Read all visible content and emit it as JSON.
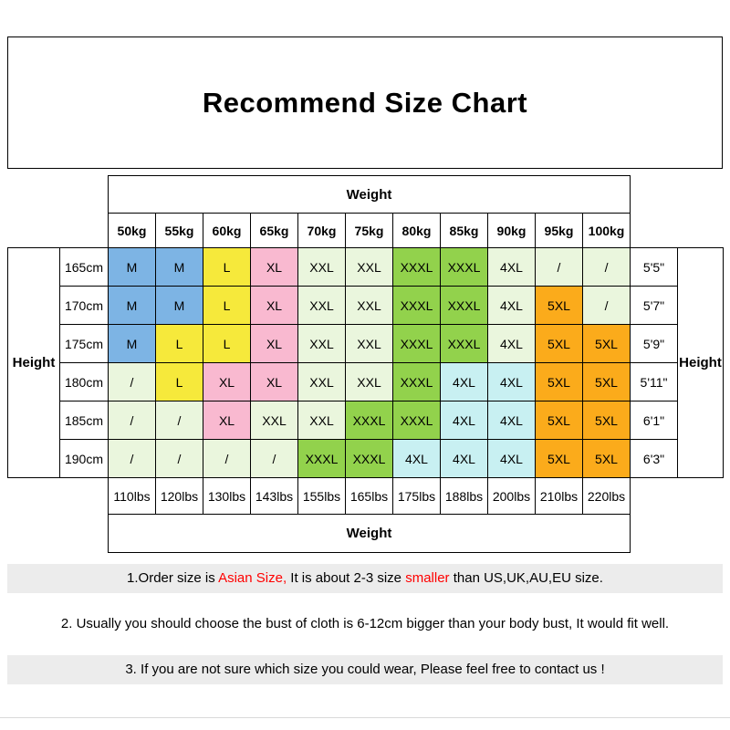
{
  "title": "Recommend Size Chart",
  "chart_data": {
    "type": "table",
    "title": "Recommend Size Chart",
    "weight_axis_label_top": "Weight",
    "weight_axis_label_bottom": "Weight",
    "height_axis_label_left": "Height",
    "height_axis_label_right": "Height",
    "weights_kg": [
      "50kg",
      "55kg",
      "60kg",
      "65kg",
      "70kg",
      "75kg",
      "80kg",
      "85kg",
      "90kg",
      "95kg",
      "100kg"
    ],
    "weights_lbs": [
      "110lbs",
      "120lbs",
      "130lbs",
      "143lbs",
      "155lbs",
      "165lbs",
      "175lbs",
      "188lbs",
      "200lbs",
      "210lbs",
      "220lbs"
    ],
    "rows": [
      {
        "height_cm": "165cm",
        "height_ft": "5'5\"",
        "cells": [
          {
            "v": "M",
            "c": "blue"
          },
          {
            "v": "M",
            "c": "blue"
          },
          {
            "v": "L",
            "c": "yellow"
          },
          {
            "v": "XL",
            "c": "pink"
          },
          {
            "v": "XXL",
            "c": "pale"
          },
          {
            "v": "XXL",
            "c": "pale"
          },
          {
            "v": "XXXL",
            "c": "green"
          },
          {
            "v": "XXXL",
            "c": "green"
          },
          {
            "v": "4XL",
            "c": "pale"
          },
          {
            "v": "/",
            "c": "pale"
          },
          {
            "v": "/",
            "c": "pale"
          }
        ]
      },
      {
        "height_cm": "170cm",
        "height_ft": "5'7\"",
        "cells": [
          {
            "v": "M",
            "c": "blue"
          },
          {
            "v": "M",
            "c": "blue"
          },
          {
            "v": "L",
            "c": "yellow"
          },
          {
            "v": "XL",
            "c": "pink"
          },
          {
            "v": "XXL",
            "c": "pale"
          },
          {
            "v": "XXL",
            "c": "pale"
          },
          {
            "v": "XXXL",
            "c": "green"
          },
          {
            "v": "XXXL",
            "c": "green"
          },
          {
            "v": "4XL",
            "c": "pale"
          },
          {
            "v": "5XL",
            "c": "orange"
          },
          {
            "v": "/",
            "c": "pale"
          }
        ]
      },
      {
        "height_cm": "175cm",
        "height_ft": "5'9\"",
        "cells": [
          {
            "v": "M",
            "c": "blue"
          },
          {
            "v": "L",
            "c": "yellow"
          },
          {
            "v": "L",
            "c": "yellow"
          },
          {
            "v": "XL",
            "c": "pink"
          },
          {
            "v": "XXL",
            "c": "pale"
          },
          {
            "v": "XXL",
            "c": "pale"
          },
          {
            "v": "XXXL",
            "c": "green"
          },
          {
            "v": "XXXL",
            "c": "green"
          },
          {
            "v": "4XL",
            "c": "pale"
          },
          {
            "v": "5XL",
            "c": "orange"
          },
          {
            "v": "5XL",
            "c": "orange"
          }
        ]
      },
      {
        "height_cm": "180cm",
        "height_ft": "5'11\"",
        "cells": [
          {
            "v": "/",
            "c": "pale"
          },
          {
            "v": "L",
            "c": "yellow"
          },
          {
            "v": "XL",
            "c": "pink"
          },
          {
            "v": "XL",
            "c": "pink"
          },
          {
            "v": "XXL",
            "c": "pale"
          },
          {
            "v": "XXL",
            "c": "pale"
          },
          {
            "v": "XXXL",
            "c": "green"
          },
          {
            "v": "4XL",
            "c": "cyan"
          },
          {
            "v": "4XL",
            "c": "cyan"
          },
          {
            "v": "5XL",
            "c": "orange"
          },
          {
            "v": "5XL",
            "c": "orange"
          }
        ]
      },
      {
        "height_cm": "185cm",
        "height_ft": "6'1\"",
        "cells": [
          {
            "v": "/",
            "c": "pale"
          },
          {
            "v": "/",
            "c": "pale"
          },
          {
            "v": "XL",
            "c": "pink"
          },
          {
            "v": "XXL",
            "c": "pale"
          },
          {
            "v": "XXL",
            "c": "pale"
          },
          {
            "v": "XXXL",
            "c": "green"
          },
          {
            "v": "XXXL",
            "c": "green"
          },
          {
            "v": "4XL",
            "c": "cyan"
          },
          {
            "v": "4XL",
            "c": "cyan"
          },
          {
            "v": "5XL",
            "c": "orange"
          },
          {
            "v": "5XL",
            "c": "orange"
          }
        ]
      },
      {
        "height_cm": "190cm",
        "height_ft": "6'3\"",
        "cells": [
          {
            "v": "/",
            "c": "pale"
          },
          {
            "v": "/",
            "c": "pale"
          },
          {
            "v": "/",
            "c": "pale"
          },
          {
            "v": "/",
            "c": "pale"
          },
          {
            "v": "XXXL",
            "c": "green"
          },
          {
            "v": "XXXL",
            "c": "green"
          },
          {
            "v": "4XL",
            "c": "cyan"
          },
          {
            "v": "4XL",
            "c": "cyan"
          },
          {
            "v": "4XL",
            "c": "cyan"
          },
          {
            "v": "5XL",
            "c": "orange"
          },
          {
            "v": "5XL",
            "c": "orange"
          }
        ]
      }
    ],
    "cell_colors": {
      "blue": "#7db4e4",
      "yellow": "#f6e93b",
      "pink": "#f9b9d0",
      "pale": "#eaf6dd",
      "green": "#92d24c",
      "cyan": "#c8f0f2",
      "orange": "#fbab1b"
    }
  },
  "notes": [
    {
      "segments": [
        {
          "text": "1.Order size is ",
          "red": false
        },
        {
          "text": "Asian Size,",
          "red": true
        },
        {
          "text": " It is about 2-3 size ",
          "red": false
        },
        {
          "text": "smaller",
          "red": true
        },
        {
          "text": " than US,UK,AU,EU size.",
          "red": false
        }
      ]
    },
    {
      "segments": [
        {
          "text": "2. Usually you should choose the bust of cloth is 6-12cm bigger than your body bust, It would fit well.",
          "red": false
        }
      ]
    },
    {
      "segments": [
        {
          "text": "3. If you are not sure which size you could wear, Please feel free to contact us !",
          "red": false
        }
      ]
    }
  ],
  "colors": {
    "red_text": "#ff0000",
    "table_border": "#000000",
    "note_background": "#ececec"
  }
}
